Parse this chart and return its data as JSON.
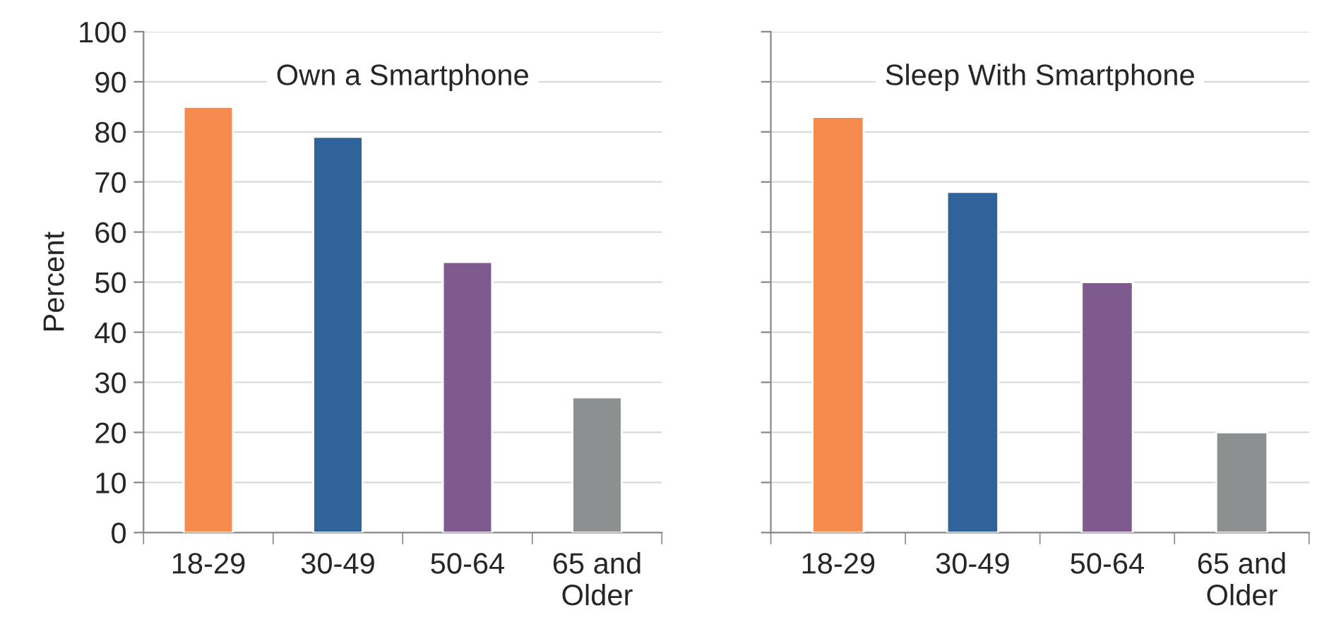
{
  "chart_data": [
    {
      "type": "bar",
      "title": "Own a Smartphone",
      "ylabel": "Percent",
      "categories": [
        "18-29",
        "30-49",
        "50-64",
        "65 and\nOlder"
      ],
      "values": [
        85,
        79,
        54,
        27
      ],
      "colors": [
        "#f68b50",
        "#2f6399",
        "#7f5a8f",
        "#8c9091"
      ],
      "ylim": [
        0,
        100
      ],
      "yticks": [
        0,
        10,
        20,
        30,
        40,
        50,
        60,
        70,
        80,
        90,
        100
      ],
      "grid": "y",
      "legend": false
    },
    {
      "type": "bar",
      "title": "Sleep With Smartphone",
      "categories": [
        "18-29",
        "30-49",
        "50-64",
        "65 and\nOlder"
      ],
      "values": [
        83,
        68,
        50,
        20
      ],
      "colors": [
        "#f68b50",
        "#2f6399",
        "#7f5a8f",
        "#8c9091"
      ],
      "ylim": [
        0,
        100
      ],
      "yticks": [
        0,
        10,
        20,
        30,
        40,
        50,
        60,
        70,
        80,
        90,
        100
      ],
      "grid": "y",
      "legend": false,
      "tick_labels": "x"
    }
  ]
}
